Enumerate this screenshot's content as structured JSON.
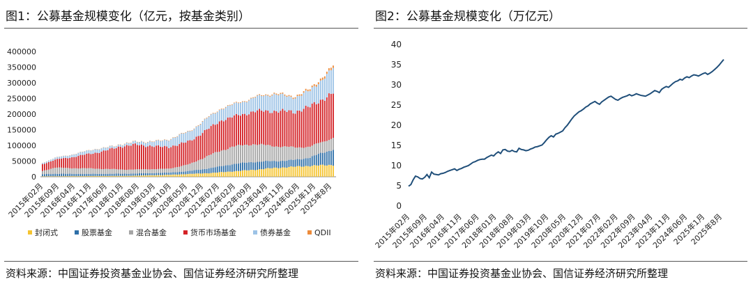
{
  "chart_data": [
    {
      "type": "bar",
      "stacked": true,
      "title": "图1：公募基金规模变化（亿元，按基金类别）",
      "source": "资料来源：中国证券投资基金业协会、国信证券经济研究所整理",
      "ylim": [
        0,
        400000
      ],
      "yticks": [
        "0",
        "50000",
        "100000",
        "150000",
        "200000",
        "250000",
        "300000",
        "350000",
        "400000"
      ],
      "xticks": [
        "2015年02月",
        "2015年09月",
        "2016年04月",
        "2016年11月",
        "2017年06月",
        "2018年01月",
        "2018年08月",
        "2019年03月",
        "2019年10月",
        "2020年05月",
        "2020年12月",
        "2021年07月",
        "2022年02月",
        "2022年09月",
        "2023年04月",
        "2023年11月",
        "2024年06月",
        "2025年1月",
        "2025年8月"
      ],
      "grid": false,
      "legend_position": "bottom",
      "series": [
        {
          "name": "封闭式",
          "color": "#F5C431",
          "anchors": [
            [
              0,
              1500
            ],
            [
              40,
              2800
            ],
            [
              60,
              6000
            ],
            [
              80,
              12000
            ],
            [
              100,
              22000
            ],
            [
              110,
              28000
            ],
            [
              127,
              35000
            ],
            [
              138,
              38000
            ]
          ]
        },
        {
          "name": "股票基金",
          "color": "#2E6FA8",
          "anchors": [
            [
              0,
              6500
            ],
            [
              6,
              8000
            ],
            [
              20,
              7000
            ],
            [
              40,
              7000
            ],
            [
              60,
              7000
            ],
            [
              70,
              9500
            ],
            [
              80,
              16000
            ],
            [
              90,
              23000
            ],
            [
              100,
              25500
            ],
            [
              110,
              22000
            ],
            [
              120,
              21500
            ],
            [
              127,
              27000
            ],
            [
              138,
              50000
            ]
          ]
        },
        {
          "name": "混合基金",
          "color": "#A6A6A6",
          "anchors": [
            [
              0,
              10000
            ],
            [
              6,
              20000
            ],
            [
              12,
              18000
            ],
            [
              20,
              18000
            ],
            [
              40,
              13000
            ],
            [
              60,
              12500
            ],
            [
              70,
              22000
            ],
            [
              80,
              43000
            ],
            [
              90,
              56000
            ],
            [
              100,
              57000
            ],
            [
              110,
              48000
            ],
            [
              120,
              40000
            ],
            [
              127,
              34000
            ],
            [
              138,
              37000
            ]
          ]
        },
        {
          "name": "货币市场基金",
          "color": "#D42227",
          "anchors": [
            [
              0,
              22000
            ],
            [
              6,
              25000
            ],
            [
              20,
              43000
            ],
            [
              30,
              58000
            ],
            [
              37,
              74000
            ],
            [
              45,
              79000
            ],
            [
              55,
              71000
            ],
            [
              65,
              70000
            ],
            [
              70,
              74000
            ],
            [
              80,
              87000
            ],
            [
              85,
              98000
            ],
            [
              90,
              94000
            ],
            [
              100,
              104000
            ],
            [
              110,
              112000
            ],
            [
              120,
              114000
            ],
            [
              127,
              128000
            ],
            [
              138,
              143000
            ]
          ]
        },
        {
          "name": "债券基金",
          "color": "#9DC3E6",
          "anchors": [
            [
              0,
              4000
            ],
            [
              10,
              7000
            ],
            [
              20,
              10000
            ],
            [
              25,
              12000
            ],
            [
              35,
              6000
            ],
            [
              45,
              9000
            ],
            [
              55,
              17000
            ],
            [
              65,
              29000
            ],
            [
              70,
              31000
            ],
            [
              80,
              37000
            ],
            [
              90,
              38000
            ],
            [
              100,
              43000
            ],
            [
              110,
              55000
            ],
            [
              117,
              46000
            ],
            [
              127,
              50000
            ],
            [
              138,
              78000
            ]
          ]
        },
        {
          "name": "QDII",
          "color": "#ED8B3A",
          "anchors": [
            [
              0,
              400
            ],
            [
              60,
              1200
            ],
            [
              100,
              2000
            ],
            [
              120,
              4000
            ],
            [
              138,
              8000
            ]
          ]
        }
      ]
    },
    {
      "type": "line",
      "title": "图2：公募基金规模变化（万亿元）",
      "source": "资料来源：中国证券投资基金业协会、国信证券经济研究所整理",
      "ylim": [
        0,
        40
      ],
      "yticks": [
        "0",
        "5",
        "10",
        "15",
        "20",
        "25",
        "30",
        "35",
        "40"
      ],
      "xticks": [
        "2015年02月",
        "2015年09月",
        "2016年04月",
        "2016年11月",
        "2017年06月",
        "2018年01月",
        "2018年08月",
        "2019年03月",
        "2019年10月",
        "2020年05月",
        "2020年12月",
        "2021年07月",
        "2022年02月",
        "2022年09月",
        "2023年04月",
        "2023年11月",
        "2024年06月",
        "2025年1月",
        "2025年8月"
      ],
      "grid": false,
      "line_color": "#1F4E79",
      "values": [
        4.9,
        5.3,
        6.5,
        7.4,
        7.2,
        6.8,
        6.7,
        7.1,
        7.8,
        7.0,
        8.4,
        7.9,
        7.8,
        7.7,
        8.0,
        8.1,
        8.3,
        8.6,
        8.8,
        9.0,
        9.2,
        8.8,
        9.1,
        9.3,
        9.6,
        9.8,
        10.0,
        10.4,
        10.8,
        11.0,
        11.3,
        11.5,
        11.6,
        11.6,
        12.0,
        12.3,
        12.6,
        12.4,
        13.0,
        13.4,
        13.0,
        13.9,
        14.0,
        13.6,
        13.5,
        13.8,
        13.5,
        13.4,
        14.3,
        14.0,
        13.9,
        13.7,
        13.8,
        14.1,
        14.3,
        14.6,
        14.7,
        14.9,
        15.1,
        15.7,
        16.4,
        17.0,
        17.4,
        17.1,
        17.8,
        18.0,
        18.3,
        18.6,
        19.4,
        20.0,
        20.8,
        21.6,
        22.3,
        22.8,
        23.3,
        23.6,
        24.0,
        24.5,
        24.8,
        25.3,
        25.6,
        25.9,
        25.5,
        25.2,
        25.8,
        26.2,
        26.6,
        27.0,
        27.2,
        26.8,
        26.4,
        26.2,
        26.6,
        26.9,
        27.1,
        27.3,
        27.6,
        27.3,
        27.5,
        27.8,
        27.6,
        27.4,
        27.3,
        27.2,
        27.5,
        27.8,
        28.2,
        28.6,
        28.4,
        28.1,
        28.9,
        29.3,
        29.6,
        29.4,
        29.9,
        30.4,
        30.8,
        31.0,
        31.4,
        31.2,
        31.7,
        32.0,
        31.8,
        32.2,
        32.5,
        32.4,
        32.2,
        32.5,
        32.8,
        33.0,
        32.6,
        32.9,
        33.3,
        33.8,
        34.3,
        34.9,
        35.6,
        36.3
      ]
    }
  ]
}
